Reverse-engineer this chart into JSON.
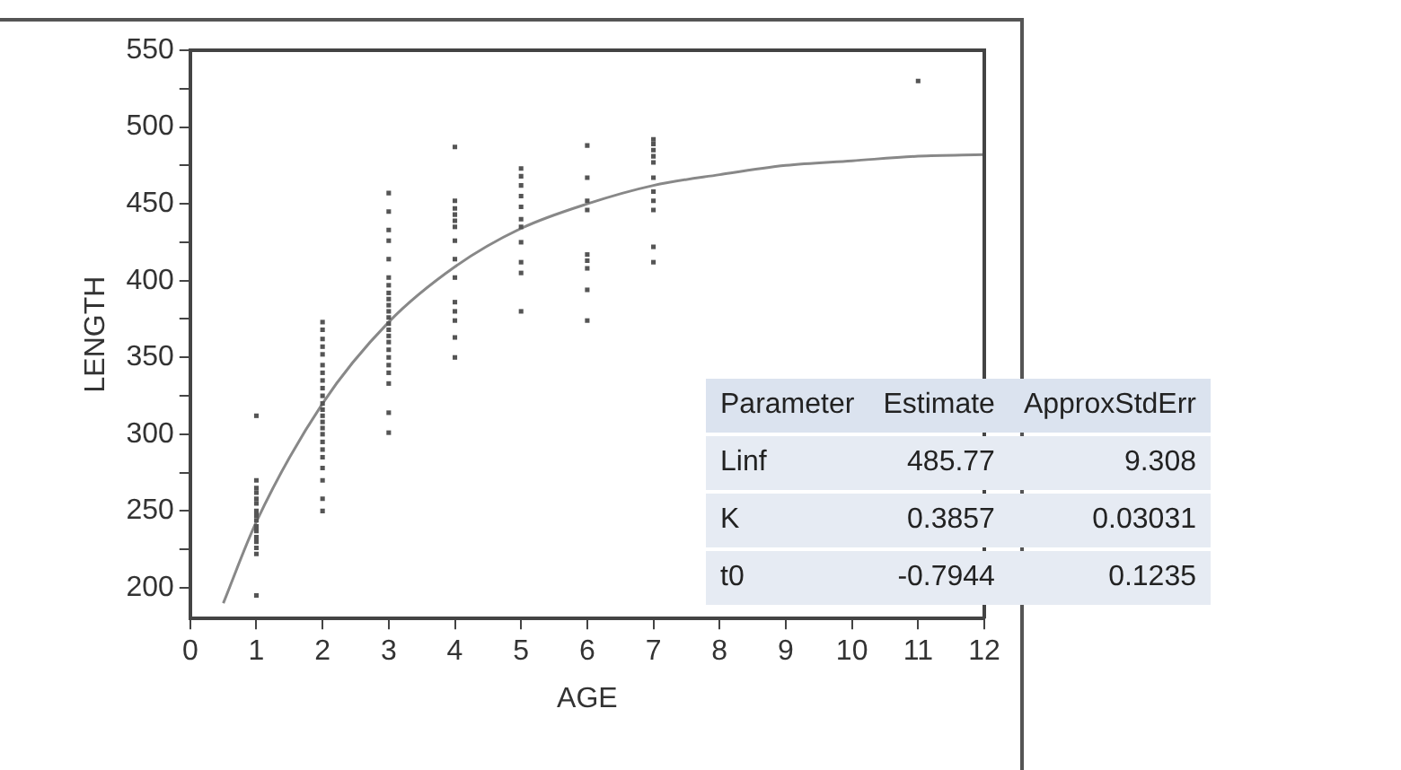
{
  "chart_data": {
    "type": "scatter",
    "xlabel": "AGE",
    "ylabel": "LENGTH",
    "xlim": [
      0,
      12
    ],
    "ylim": [
      180,
      550
    ],
    "xticks": [
      0,
      1,
      2,
      3,
      4,
      5,
      6,
      7,
      8,
      9,
      10,
      11,
      12
    ],
    "yticks": [
      200,
      {
        "value": 225,
        "label": null
      },
      250,
      {
        "value": 275,
        "label": null
      },
      300,
      {
        "value": 325,
        "label": null
      },
      350,
      {
        "value": 375,
        "label": null
      },
      400,
      {
        "value": 425,
        "label": null
      },
      450,
      {
        "value": 475,
        "label": null
      },
      500,
      {
        "value": 525,
        "label": null
      },
      550
    ],
    "grid": false,
    "legend": false,
    "series": [
      {
        "marker": "square",
        "color": "#555555",
        "x": [
          1,
          1,
          1,
          1,
          1,
          1,
          1,
          1,
          1,
          1,
          1,
          1,
          1,
          1,
          1,
          1,
          2,
          2,
          2,
          2,
          2,
          2,
          2,
          2,
          2,
          2,
          2,
          2,
          2,
          2,
          2,
          2,
          2,
          2,
          2,
          2,
          2,
          2,
          2,
          3,
          3,
          3,
          3,
          3,
          3,
          3,
          3,
          3,
          3,
          3,
          3,
          3,
          3,
          3,
          3,
          3,
          3,
          3,
          3,
          3,
          3,
          3,
          4,
          4,
          4,
          4,
          4,
          4,
          4,
          4,
          4,
          4,
          4,
          4,
          4,
          4,
          5,
          5,
          5,
          5,
          5,
          5,
          5,
          5,
          5,
          5,
          5,
          6,
          6,
          6,
          6,
          6,
          6,
          6,
          6,
          6,
          7,
          7,
          7,
          7,
          7,
          7,
          7,
          7,
          7,
          7,
          7,
          11
        ],
        "values": [
          312,
          270,
          265,
          262,
          258,
          255,
          250,
          247,
          244,
          240,
          237,
          233,
          230,
          226,
          222,
          195,
          373,
          368,
          362,
          357,
          352,
          345,
          340,
          335,
          330,
          325,
          320,
          316,
          312,
          308,
          304,
          300,
          295,
          290,
          285,
          278,
          270,
          258,
          250,
          457,
          445,
          433,
          426,
          414,
          402,
          397,
          392,
          388,
          384,
          380,
          376,
          372,
          368,
          364,
          360,
          355,
          350,
          345,
          340,
          333,
          314,
          301,
          487,
          452,
          447,
          443,
          439,
          435,
          426,
          414,
          402,
          386,
          380,
          374,
          363,
          350,
          473,
          468,
          462,
          455,
          448,
          440,
          435,
          425,
          412,
          405,
          380,
          488,
          467,
          452,
          446,
          417,
          413,
          408,
          394,
          374,
          492,
          489,
          485,
          481,
          477,
          467,
          458,
          452,
          446,
          422,
          412,
          530
        ]
      },
      {
        "type": "line",
        "marker": "none",
        "color": "#888888",
        "x": [
          0.5,
          1,
          2,
          3,
          4,
          5,
          6,
          7,
          8,
          9,
          10,
          11,
          12
        ],
        "values": [
          190,
          243,
          320,
          373,
          409,
          434,
          450,
          462,
          469,
          475,
          478,
          481,
          482
        ]
      }
    ],
    "annotations": [
      "Parameter",
      "Estimate",
      "ApproxStdErr",
      "Linf",
      "485.77",
      "9.308",
      "K",
      "0.3857",
      "0.03031",
      "t0",
      "-0.7944",
      "0.1235"
    ]
  }
}
